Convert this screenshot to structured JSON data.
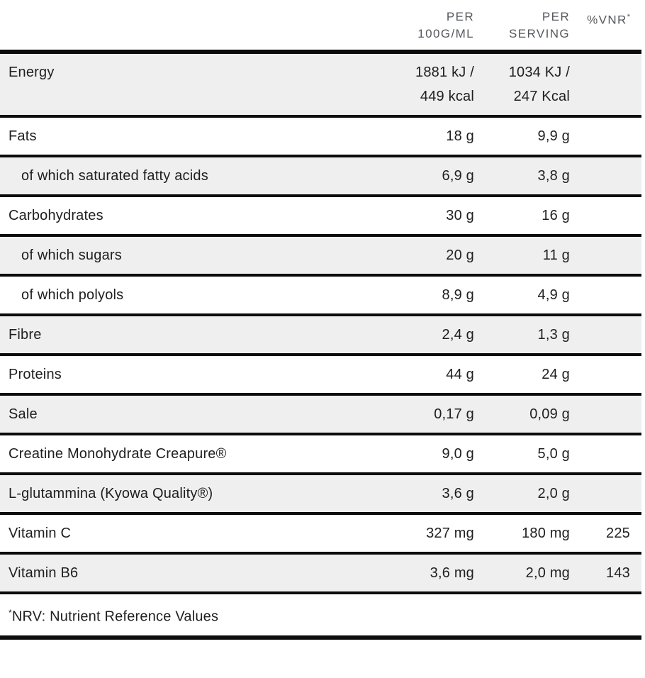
{
  "header": {
    "col_label": "",
    "col_per_100g": "PER\n100G/ML",
    "col_per_serving": "PER\nSERVING",
    "col_vnr": "%VNR",
    "col_vnr_sup": "*"
  },
  "rows": [
    {
      "label": "Energy",
      "sub": false,
      "per_100g": "1881 kJ /\n449 kcal",
      "per_serving": "1034 KJ /\n247 Kcal",
      "vnr": ""
    },
    {
      "label": "Fats",
      "sub": false,
      "per_100g": "18 g",
      "per_serving": "9,9 g",
      "vnr": ""
    },
    {
      "label": "of which saturated fatty acids",
      "sub": true,
      "per_100g": "6,9 g",
      "per_serving": "3,8 g",
      "vnr": ""
    },
    {
      "label": "Carbohydrates",
      "sub": false,
      "per_100g": "30 g",
      "per_serving": "16 g",
      "vnr": ""
    },
    {
      "label": "of which sugars",
      "sub": true,
      "per_100g": "20 g",
      "per_serving": "11 g",
      "vnr": ""
    },
    {
      "label": "of which polyols",
      "sub": true,
      "per_100g": "8,9 g",
      "per_serving": "4,9 g",
      "vnr": ""
    },
    {
      "label": "Fibre",
      "sub": false,
      "per_100g": "2,4 g",
      "per_serving": "1,3 g",
      "vnr": ""
    },
    {
      "label": "Proteins",
      "sub": false,
      "per_100g": "44 g",
      "per_serving": "24 g",
      "vnr": ""
    },
    {
      "label": "Sale",
      "sub": false,
      "per_100g": "0,17 g",
      "per_serving": "0,09 g",
      "vnr": ""
    },
    {
      "label": "Creatine Monohydrate Creapure®",
      "sub": false,
      "per_100g": "9,0 g",
      "per_serving": "5,0 g",
      "vnr": ""
    },
    {
      "label": "L-glutammina (Kyowa Quality®)",
      "sub": false,
      "per_100g": "3,6 g",
      "per_serving": "2,0 g",
      "vnr": ""
    },
    {
      "label": "Vitamin C",
      "sub": false,
      "per_100g": "327 mg",
      "per_serving": "180 mg",
      "vnr": "225"
    },
    {
      "label": "Vitamin B6",
      "sub": false,
      "per_100g": "3,6 mg",
      "per_serving": "2,0 mg",
      "vnr": "143"
    }
  ],
  "footnote": {
    "sup": "*",
    "text": "NRV: Nutrient Reference Values"
  },
  "colors": {
    "shaded_row": "#efefef",
    "border": "#0c0c0c",
    "body_text": "#202020",
    "header_text": "#55585c"
  }
}
